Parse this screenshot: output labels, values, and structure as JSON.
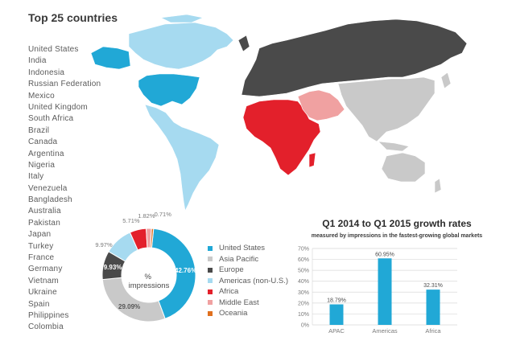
{
  "header": {
    "title": "Top 25 countries"
  },
  "countries": [
    "United States",
    "India",
    "Indonesia",
    "Russian Federation",
    "Mexico",
    "United Kingdom",
    "South Africa",
    "Brazil",
    "Canada",
    "Argentina",
    "Nigeria",
    "Italy",
    "Venezuela",
    "Bangladesh",
    "Australia",
    "Pakistan",
    "Japan",
    "Turkey",
    "France",
    "Germany",
    "Vietnam",
    "Ukraine",
    "Spain",
    "Philippines",
    "Colombia"
  ],
  "map": {
    "regions": [
      {
        "name": "North America",
        "color": "#a6daf0"
      },
      {
        "name": "United States",
        "color": "#21a8d6"
      },
      {
        "name": "Latin America",
        "color": "#a6daf0"
      },
      {
        "name": "Europe & Russia",
        "color": "#4a4a4a"
      },
      {
        "name": "Africa",
        "color": "#e3202b"
      },
      {
        "name": "Middle East",
        "color": "#f0a1a1"
      },
      {
        "name": "Asia Pacific",
        "color": "#c9c9c9"
      }
    ]
  },
  "colors": {
    "united_states": "#21a8d6",
    "asia_pacific": "#c9c9c9",
    "europe": "#4a4a4a",
    "americas": "#a6daf0",
    "africa": "#e3202b",
    "middle_east": "#f0a1a1",
    "oceania": "#e0701f",
    "bar": "#21a8d6"
  },
  "chart_data": [
    {
      "type": "pie",
      "center_label": "% impressions",
      "categories": [
        "United States",
        "Asia Pacific",
        "Europe",
        "Americas (non-U.S.)",
        "Africa",
        "Middle East",
        "Oceania"
      ],
      "values": [
        42.76,
        29.09,
        9.93,
        9.97,
        5.71,
        1.82,
        0.71
      ],
      "labels": [
        "42.76%",
        "29.09%",
        "9.93%",
        "9.97%",
        "5.71%",
        "1.82%",
        "0.71%"
      ],
      "colors": [
        "#21a8d6",
        "#c9c9c9",
        "#4a4a4a",
        "#a6daf0",
        "#e3202b",
        "#f0a1a1",
        "#e0701f"
      ],
      "legend": "right"
    },
    {
      "type": "bar",
      "title": "Q1 2014 to Q1 2015 growth rates",
      "subtitle": "measured by impressions in the fastest-growing global markets",
      "categories": [
        "APAC",
        "Americas",
        "Africa"
      ],
      "values": [
        18.79,
        60.95,
        32.31
      ],
      "labels": [
        "18.79%",
        "60.95%",
        "32.31%"
      ],
      "ylim": [
        0,
        70
      ],
      "yticks": [
        "0%",
        "10%",
        "20%",
        "30%",
        "40%",
        "50%",
        "60%",
        "70%"
      ],
      "grid": true
    }
  ]
}
